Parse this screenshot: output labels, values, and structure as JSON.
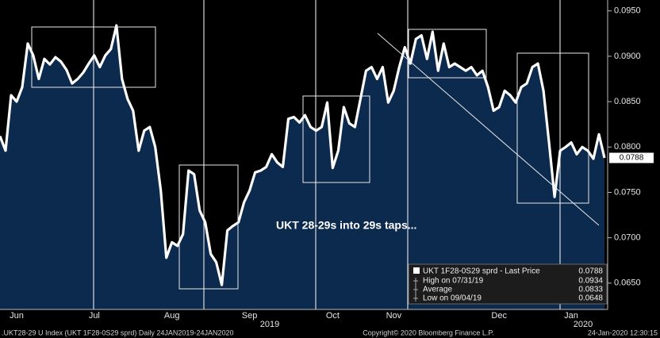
{
  "chart_data": {
    "type": "area",
    "color": "#ffffff",
    "fill": "#0c2a4d",
    "categories": [
      null,
      null,
      null,
      "Jun",
      null,
      null,
      null,
      null,
      null,
      null,
      null,
      null,
      null,
      null,
      null,
      null,
      null,
      "Jul",
      null,
      null,
      null,
      null,
      null,
      null,
      null,
      null,
      null,
      null,
      null,
      null,
      null,
      "Aug",
      null,
      null,
      null,
      null,
      null,
      null,
      null,
      null,
      null,
      null,
      null,
      null,
      null,
      "Sep",
      null,
      null,
      null,
      null,
      null,
      null,
      null,
      null,
      null,
      null,
      null,
      null,
      null,
      null,
      "Oct",
      null,
      null,
      null,
      null,
      null,
      null,
      null,
      null,
      null,
      null,
      "Nov",
      null,
      null,
      null,
      null,
      null,
      null,
      null,
      null,
      null,
      null,
      null,
      null,
      null,
      null,
      null,
      null,
      null,
      null,
      "Dec",
      null,
      null,
      null,
      null,
      null,
      null,
      null,
      null,
      null,
      null,
      null,
      null,
      "Jan",
      null,
      null,
      null,
      null,
      null,
      null
    ],
    "values": [
      0.0812,
      0.0796,
      0.0857,
      0.085,
      0.0866,
      0.0914,
      0.0901,
      0.0875,
      0.0897,
      0.0891,
      0.0899,
      0.0894,
      0.0885,
      0.087,
      0.0875,
      0.0882,
      0.0892,
      0.0901,
      0.0888,
      0.0901,
      0.0908,
      0.0934,
      0.0875,
      0.0853,
      0.084,
      0.0796,
      0.0818,
      0.0822,
      0.08,
      0.0752,
      0.0678,
      0.0695,
      0.0691,
      0.0704,
      0.0774,
      0.077,
      0.073,
      0.0717,
      0.0682,
      0.0673,
      0.0648,
      0.0708,
      0.0713,
      0.0717,
      0.0739,
      0.0752,
      0.0772,
      0.0774,
      0.0778,
      0.0792,
      0.0783,
      0.0778,
      0.0831,
      0.0833,
      0.0827,
      0.0835,
      0.0822,
      0.0818,
      0.0822,
      0.0849,
      0.0777,
      0.0796,
      0.0844,
      0.0826,
      0.0822,
      0.0853,
      0.0884,
      0.0888,
      0.0875,
      0.0888,
      0.0849,
      0.0862,
      0.0888,
      0.091,
      0.0892,
      0.0919,
      0.0923,
      0.0897,
      0.0927,
      0.0884,
      0.0914,
      0.0888,
      0.0892,
      0.0888,
      0.0884,
      0.0888,
      0.0879,
      0.0884,
      0.0866,
      0.084,
      0.0844,
      0.0862,
      0.0857,
      0.0849,
      0.0866,
      0.087,
      0.0888,
      0.0892,
      0.0862,
      0.0805,
      0.0745,
      0.0796,
      0.08,
      0.0805,
      0.0792,
      0.08,
      0.0796,
      0.0787,
      0.0814,
      0.0788
    ],
    "ylim": [
      0.0621,
      0.0962
    ],
    "yticks": [
      {
        "value": 0.065,
        "label": "0.0650"
      },
      {
        "value": 0.07,
        "label": "0.0700"
      },
      {
        "value": 0.075,
        "label": "0.0750"
      },
      {
        "value": 0.08,
        "label": "0.0800"
      },
      {
        "value": 0.085,
        "label": "0.0850"
      },
      {
        "value": 0.09,
        "label": "0.0900"
      },
      {
        "value": 0.095,
        "label": "0.0950"
      }
    ],
    "year_labels": [
      "2019",
      "2020"
    ],
    "annotation": "UKT 28-29s into 29s taps...",
    "legend": [
      {
        "label": "UKT 1F28-0S29 sprd - Last Price",
        "value": 0.0788
      },
      {
        "label": "High on 07/31/19",
        "value": 0.0934
      },
      {
        "label": "Average",
        "value": 0.0833
      },
      {
        "label": "Low on 09/04/19",
        "value": 0.0648
      }
    ],
    "footer": {
      "left": ".UKT28-29 U Index (UKT 1F28-0S29 sprd)  Daily 24JAN2019-24JAN2020",
      "center": "Copyright© 2020 Bloomberg Finance L.P.",
      "right": "24-Jan-2020 12:30:15"
    }
  }
}
